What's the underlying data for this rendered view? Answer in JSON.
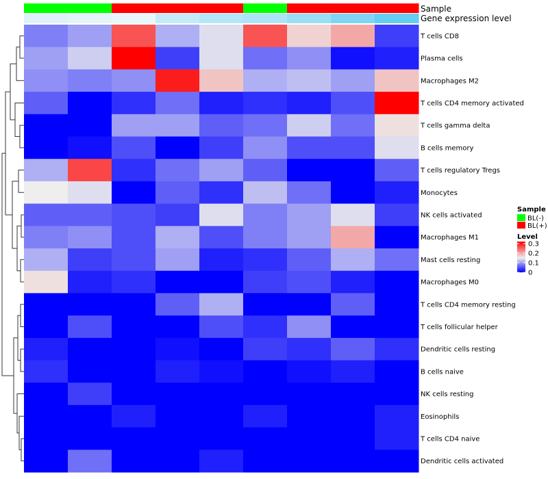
{
  "chart_data": {
    "type": "heatmap",
    "annotation_labels": {
      "sample": "Sample",
      "gene": "Gene expression level"
    },
    "rows": [
      "T cells CD8",
      "Plasma cells",
      "Macrophages M2",
      "T cells CD4 memory activated",
      "T cells gamma delta",
      "B cells memory",
      "T cells regulatory  Tregs",
      "Monocytes",
      "NK cells activated",
      "Macrophages M1",
      "Mast cells resting",
      "Macrophages M0",
      "T cells CD4 memory resting",
      "T cells follicular helper",
      "Dendritic cells resting",
      "B cells naive",
      "NK cells resting",
      "Eosinophils",
      "T cells CD4 naive",
      "Dendritic cells activated"
    ],
    "sample_annotation": [
      "BL(-)",
      "BL(-)",
      "BL(+)",
      "BL(+)",
      "BL(+)",
      "BL(-)",
      "BL(+)",
      "BL(+)",
      "BL(+)"
    ],
    "gene_expression_annotation": [
      0.12,
      0.08,
      0.04,
      0.28,
      0.38,
      0.42,
      0.55,
      0.72,
      0.9
    ],
    "values": [
      [
        0.08,
        0.1,
        0.26,
        0.11,
        0.14,
        0.26,
        0.17,
        0.2,
        0.04
      ],
      [
        0.1,
        0.13,
        0.32,
        0.04,
        0.14,
        0.07,
        0.09,
        0.01,
        0.02
      ],
      [
        0.09,
        0.08,
        0.09,
        0.3,
        0.18,
        0.11,
        0.12,
        0.1,
        0.18
      ],
      [
        0.06,
        0.0,
        0.03,
        0.07,
        0.02,
        0.03,
        0.02,
        0.05,
        0.32
      ],
      [
        0.0,
        0.0,
        0.1,
        0.1,
        0.06,
        0.07,
        0.13,
        0.07,
        0.16
      ],
      [
        0.0,
        0.01,
        0.05,
        0.0,
        0.04,
        0.09,
        0.05,
        0.05,
        0.14
      ],
      [
        0.11,
        0.27,
        0.03,
        0.07,
        0.1,
        0.06,
        0.0,
        0.0,
        0.06
      ],
      [
        0.15,
        0.14,
        0.0,
        0.06,
        0.03,
        0.12,
        0.07,
        0.0,
        0.02
      ],
      [
        0.06,
        0.06,
        0.05,
        0.04,
        0.14,
        0.08,
        0.1,
        0.14,
        0.04
      ],
      [
        0.08,
        0.09,
        0.05,
        0.11,
        0.05,
        0.08,
        0.1,
        0.2,
        0.0
      ],
      [
        0.11,
        0.04,
        0.05,
        0.1,
        0.02,
        0.03,
        0.06,
        0.11,
        0.07
      ],
      [
        0.16,
        0.02,
        0.03,
        0.0,
        0.0,
        0.04,
        0.05,
        0.02,
        0.0
      ],
      [
        0.0,
        0.0,
        0.0,
        0.06,
        0.11,
        0.0,
        0.0,
        0.06,
        0.0
      ],
      [
        0.0,
        0.05,
        0.0,
        0.0,
        0.05,
        0.03,
        0.09,
        0.0,
        0.0
      ],
      [
        0.02,
        0.0,
        0.0,
        0.01,
        0.0,
        0.04,
        0.03,
        0.06,
        0.03
      ],
      [
        0.03,
        0.0,
        0.0,
        0.02,
        0.01,
        0.0,
        0.01,
        0.02,
        0.0
      ],
      [
        0.0,
        0.04,
        0.0,
        0.0,
        0.0,
        0.0,
        0.0,
        0.0,
        0.0
      ],
      [
        0.0,
        0.0,
        0.02,
        0.0,
        0.0,
        0.02,
        0.0,
        0.0,
        0.02
      ],
      [
        0.0,
        0.0,
        0.0,
        0.0,
        0.0,
        0.0,
        0.0,
        0.0,
        0.02
      ],
      [
        0.0,
        0.07,
        0.0,
        0.0,
        0.02,
        0.0,
        0.0,
        0.0,
        0.0
      ]
    ],
    "color_scale": {
      "domain": [
        0,
        0.15,
        0.32
      ],
      "colors": [
        "#0000ff",
        "#eeeeee",
        "#ff0000"
      ]
    },
    "legend": {
      "sample": {
        "title": "Sample",
        "items": [
          {
            "label": "BL(-)",
            "color": "#00ff00"
          },
          {
            "label": "BL(+)",
            "color": "#ff0000"
          }
        ]
      },
      "level": {
        "title": "Level",
        "ticks": [
          "0.3",
          "0.2",
          "0.1",
          "0"
        ],
        "tick_values": [
          0.3,
          0.2,
          0.1,
          0
        ]
      }
    },
    "gene_annotation_colors": [
      "#f0f8fc",
      "#54c8f0"
    ],
    "dendrogram": "row clustering tree, left side"
  }
}
